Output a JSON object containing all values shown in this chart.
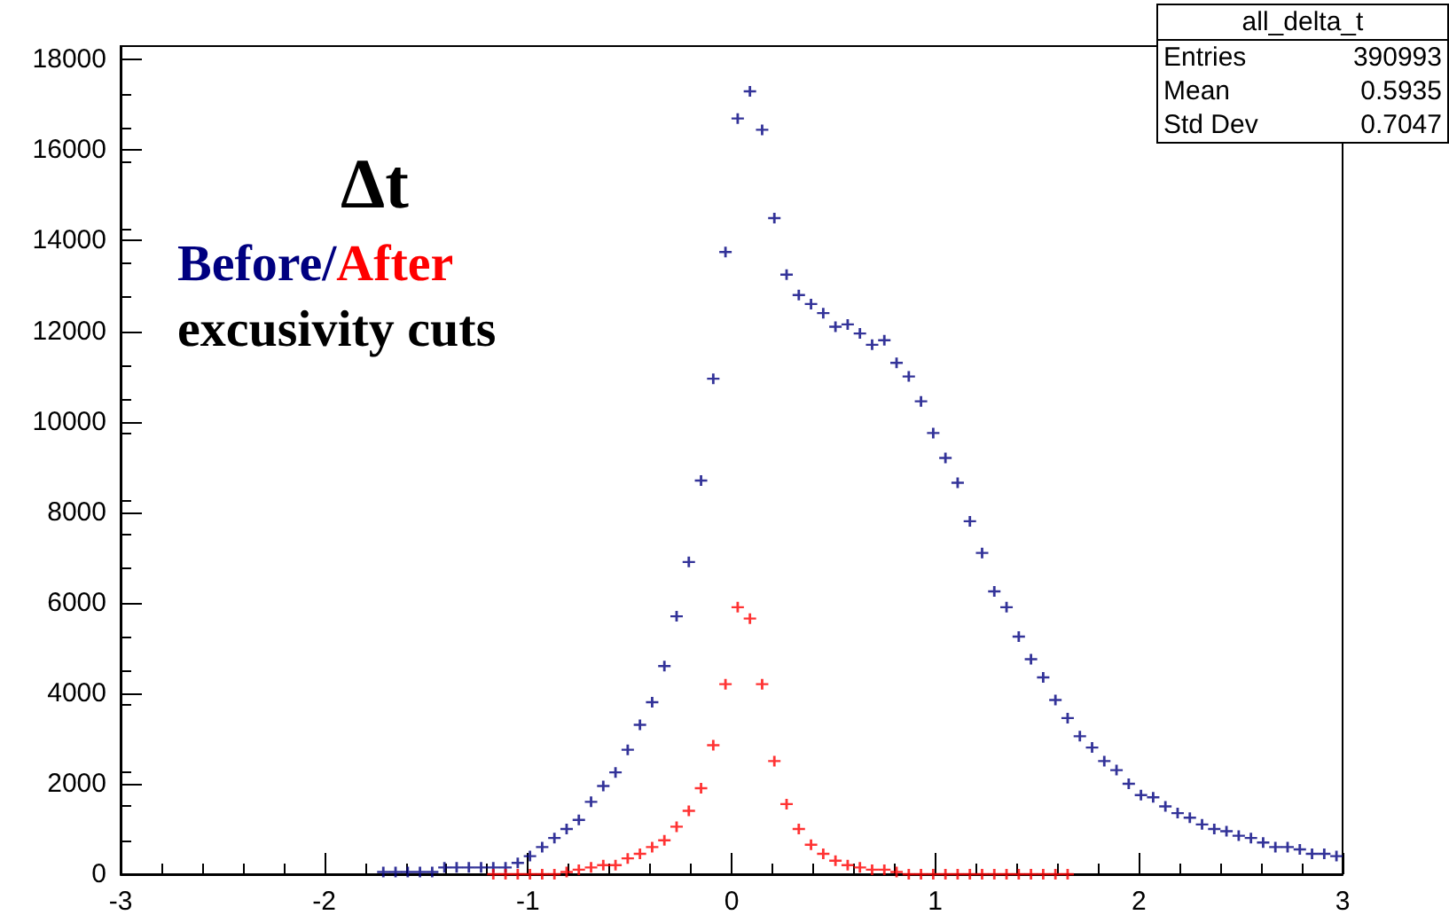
{
  "chart_data": {
    "type": "scatter",
    "title": "Δt",
    "marker": "cross",
    "annotations": [
      "/",
      "excusivity cuts",
      "all_delta_t",
      "Entries",
      "390993",
      "Mean",
      "0.5935",
      "Std Dev",
      "0.7047"
    ],
    "xlim": [
      -3,
      3
    ],
    "xticks": [
      -3,
      -2,
      -1,
      0,
      1,
      2,
      3
    ],
    "ylim": [
      0,
      18300
    ],
    "yticks": [
      0,
      2000,
      4000,
      6000,
      8000,
      10000,
      12000,
      14000,
      16000,
      18000
    ],
    "x": [
      -1.71,
      -1.65,
      -1.59,
      -1.53,
      -1.47,
      -1.41,
      -1.35,
      -1.29,
      -1.23,
      -1.17,
      -1.11,
      -1.05,
      -0.99,
      -0.93,
      -0.87,
      -0.81,
      -0.75,
      -0.69,
      -0.63,
      -0.57,
      -0.51,
      -0.45,
      -0.39,
      -0.33,
      -0.27,
      -0.21,
      -0.15,
      -0.09,
      -0.03,
      0.03,
      0.09,
      0.15,
      0.21,
      0.27,
      0.33,
      0.39,
      0.45,
      0.51,
      0.57,
      0.63,
      0.69,
      0.75,
      0.81,
      0.87,
      0.93,
      0.99,
      1.05,
      1.11,
      1.17,
      1.23,
      1.29,
      1.35,
      1.41,
      1.47,
      1.53,
      1.59,
      1.65,
      1.71,
      1.77,
      1.83,
      1.89,
      1.95,
      2.01,
      2.07,
      2.13,
      2.19,
      2.25,
      2.31,
      2.37,
      2.43,
      2.49,
      2.55,
      2.61,
      2.67,
      2.73,
      2.79,
      2.85,
      2.91,
      2.97
    ],
    "series": [
      {
        "name": "Before",
        "color": "#000080",
        "values": [
          50,
          50,
          50,
          50,
          50,
          150,
          150,
          150,
          150,
          150,
          150,
          250,
          400,
          600,
          800,
          1000,
          1200,
          1600,
          1950,
          2250,
          2750,
          3300,
          3800,
          4600,
          5700,
          6900,
          8700,
          10950,
          13750,
          16700,
          17300,
          16450,
          14500,
          13250,
          12800,
          12600,
          12400,
          12100,
          12150,
          11950,
          11700,
          11800,
          11300,
          11000,
          10450,
          9750,
          9200,
          8650,
          7800,
          7100,
          6250,
          5900,
          5250,
          4750,
          4350,
          3850,
          3450,
          3050,
          2800,
          2500,
          2300,
          2000,
          1750,
          1700,
          1500,
          1350,
          1250,
          1100,
          1000,
          950,
          850,
          800,
          700,
          600,
          600,
          550,
          450,
          450,
          400
        ]
      },
      {
        "name": "After",
        "color": "#ff0000",
        "values": [
          null,
          null,
          null,
          null,
          null,
          null,
          null,
          null,
          null,
          0,
          0,
          0,
          0,
          0,
          0,
          50,
          100,
          150,
          200,
          200,
          350,
          450,
          600,
          750,
          1050,
          1400,
          1900,
          2850,
          4200,
          5900,
          5650,
          4200,
          2500,
          1550,
          1000,
          650,
          450,
          300,
          200,
          150,
          100,
          100,
          50,
          0,
          0,
          0,
          0,
          0,
          0,
          0,
          0,
          0,
          0,
          0,
          0,
          0,
          0,
          null,
          null,
          null,
          null,
          null,
          null,
          null,
          null,
          null,
          null,
          null,
          null,
          null,
          null,
          null,
          null,
          null,
          null,
          null,
          null,
          null,
          null
        ]
      }
    ]
  }
}
